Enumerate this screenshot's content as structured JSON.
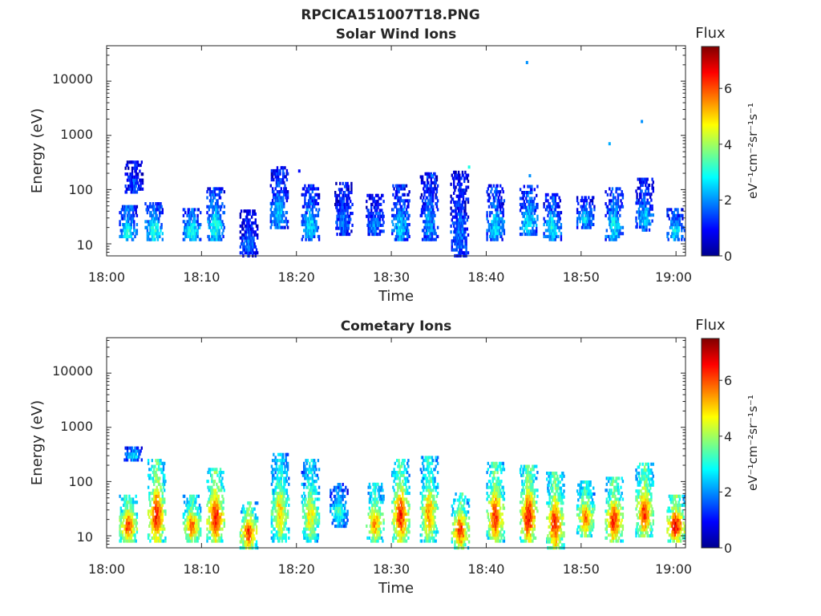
{
  "figure": {
    "title": "RPCICA151007T18.PNG",
    "colorbar_label": "Flux",
    "colorbar_unit": "eV⁻¹cm⁻²sr⁻¹s⁻¹",
    "colorbar_ticks": [
      "0",
      "2",
      "4",
      "6"
    ],
    "colormap": "jet"
  },
  "chart_data": [
    {
      "type": "heatmap",
      "title": "Solar Wind Ions",
      "xlabel": "Time",
      "ylabel": "Energy (eV)",
      "x_ticks": [
        "18:00",
        "18:10",
        "18:20",
        "18:30",
        "18:40",
        "18:50",
        "19:00"
      ],
      "y_ticks": [
        "10",
        "100",
        "1000",
        "10000"
      ],
      "y_scale": "log",
      "ylim": [
        6,
        45000
      ],
      "xlim_minutes": [
        0,
        61
      ],
      "clim": [
        0,
        7.5
      ],
      "bursts": [
        {
          "t": 2.3,
          "e_lo": 12,
          "e_hi": 50,
          "v": 3.0
        },
        {
          "t": 2.9,
          "e_lo": 90,
          "e_hi": 330,
          "v": 1.5
        },
        {
          "t": 5.0,
          "e_lo": 12,
          "e_hi": 55,
          "v": 3.3
        },
        {
          "t": 9.0,
          "e_lo": 12,
          "e_hi": 45,
          "v": 3.2
        },
        {
          "t": 11.5,
          "e_lo": 12,
          "e_hi": 110,
          "v": 3.0
        },
        {
          "t": 15.0,
          "e_lo": 6,
          "e_hi": 45,
          "v": 1.8
        },
        {
          "t": 18.2,
          "e_lo": 20,
          "e_hi": 280,
          "v": 2.4
        },
        {
          "t": 21.5,
          "e_lo": 12,
          "e_hi": 120,
          "v": 2.6
        },
        {
          "t": 25.0,
          "e_lo": 15,
          "e_hi": 130,
          "v": 1.8
        },
        {
          "t": 28.3,
          "e_lo": 15,
          "e_hi": 80,
          "v": 2.0
        },
        {
          "t": 31.0,
          "e_lo": 12,
          "e_hi": 130,
          "v": 2.5
        },
        {
          "t": 34.0,
          "e_lo": 12,
          "e_hi": 200,
          "v": 2.2
        },
        {
          "t": 37.2,
          "e_lo": 6,
          "e_hi": 220,
          "v": 1.9
        },
        {
          "t": 41.0,
          "e_lo": 12,
          "e_hi": 120,
          "v": 2.6
        },
        {
          "t": 44.5,
          "e_lo": 15,
          "e_hi": 120,
          "v": 2.8
        },
        {
          "t": 47.0,
          "e_lo": 12,
          "e_hi": 90,
          "v": 2.8
        },
        {
          "t": 50.5,
          "e_lo": 20,
          "e_hi": 80,
          "v": 2.5
        },
        {
          "t": 53.5,
          "e_lo": 12,
          "e_hi": 110,
          "v": 2.8
        },
        {
          "t": 56.7,
          "e_lo": 18,
          "e_hi": 170,
          "v": 2.3
        },
        {
          "t": 60.0,
          "e_lo": 12,
          "e_hi": 45,
          "v": 2.9
        }
      ],
      "specks": [
        {
          "t": 44.3,
          "e": 22000,
          "v": 2.0
        },
        {
          "t": 56.4,
          "e": 1800,
          "v": 2.0
        },
        {
          "t": 53.0,
          "e": 700,
          "v": 2.2
        },
        {
          "t": 38.2,
          "e": 260,
          "v": 3.0
        },
        {
          "t": 20.3,
          "e": 220,
          "v": 1.0
        },
        {
          "t": 34.3,
          "e": 180,
          "v": 2.0
        },
        {
          "t": 44.6,
          "e": 180,
          "v": 2.0
        }
      ]
    },
    {
      "type": "heatmap",
      "title": "Cometary Ions",
      "xlabel": "Time",
      "ylabel": "Energy (eV)",
      "x_ticks": [
        "18:00",
        "18:10",
        "18:20",
        "18:30",
        "18:40",
        "18:50",
        "19:00"
      ],
      "y_ticks": [
        "10",
        "100",
        "1000",
        "10000"
      ],
      "y_scale": "log",
      "ylim": [
        6,
        45000
      ],
      "xlim_minutes": [
        0,
        61
      ],
      "clim": [
        0,
        7.5
      ],
      "bursts": [
        {
          "t": 2.3,
          "e_lo": 8,
          "e_hi": 60,
          "v": 6.3
        },
        {
          "t": 2.8,
          "e_lo": 250,
          "e_hi": 450,
          "v": 2.8
        },
        {
          "t": 5.3,
          "e_lo": 8,
          "e_hi": 250,
          "v": 6.5
        },
        {
          "t": 9.0,
          "e_lo": 8,
          "e_hi": 60,
          "v": 5.8
        },
        {
          "t": 11.5,
          "e_lo": 8,
          "e_hi": 180,
          "v": 6.6
        },
        {
          "t": 15.0,
          "e_lo": 6,
          "e_hi": 45,
          "v": 6.3
        },
        {
          "t": 18.3,
          "e_lo": 8,
          "e_hi": 350,
          "v": 5.0
        },
        {
          "t": 21.5,
          "e_lo": 8,
          "e_hi": 250,
          "v": 4.8
        },
        {
          "t": 24.5,
          "e_lo": 15,
          "e_hi": 100,
          "v": 3.3
        },
        {
          "t": 28.3,
          "e_lo": 8,
          "e_hi": 90,
          "v": 5.5
        },
        {
          "t": 31.0,
          "e_lo": 8,
          "e_hi": 250,
          "v": 6.4
        },
        {
          "t": 34.0,
          "e_lo": 8,
          "e_hi": 300,
          "v": 5.5
        },
        {
          "t": 37.3,
          "e_lo": 6,
          "e_hi": 60,
          "v": 6.2
        },
        {
          "t": 41.0,
          "e_lo": 8,
          "e_hi": 220,
          "v": 6.3
        },
        {
          "t": 44.5,
          "e_lo": 8,
          "e_hi": 200,
          "v": 6.6
        },
        {
          "t": 47.3,
          "e_lo": 6,
          "e_hi": 150,
          "v": 6.4
        },
        {
          "t": 50.5,
          "e_lo": 10,
          "e_hi": 100,
          "v": 5.7
        },
        {
          "t": 53.5,
          "e_lo": 8,
          "e_hi": 120,
          "v": 6.3
        },
        {
          "t": 56.7,
          "e_lo": 10,
          "e_hi": 220,
          "v": 6.2
        },
        {
          "t": 60.0,
          "e_lo": 8,
          "e_hi": 60,
          "v": 6.8
        }
      ],
      "specks": []
    }
  ]
}
